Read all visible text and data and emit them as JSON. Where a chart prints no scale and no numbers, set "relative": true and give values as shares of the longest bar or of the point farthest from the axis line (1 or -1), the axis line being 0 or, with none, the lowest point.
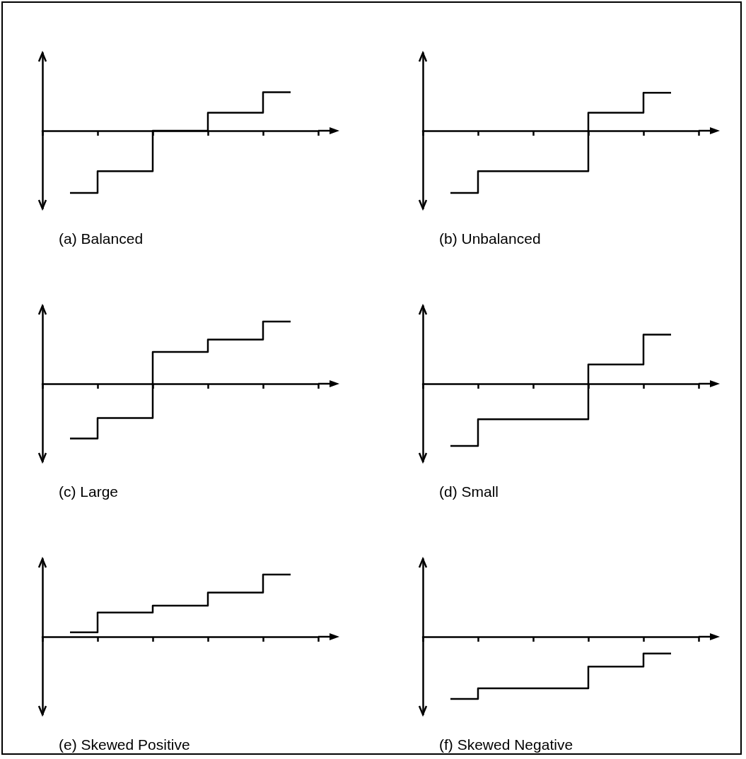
{
  "chart_data": [
    {
      "type": "step",
      "title": "(a) Balanced",
      "relative": true,
      "categories": [
        null,
        null,
        null,
        null,
        null
      ],
      "series": [
        {
          "color": "#000000",
          "values": [
            -1,
            -0.65,
            0,
            0.29,
            0.62
          ]
        }
      ]
    },
    {
      "type": "step",
      "title": "(b) Unbalanced",
      "relative": true,
      "categories": [
        null,
        null,
        null,
        null,
        null
      ],
      "series": [
        {
          "color": "#000000",
          "values": [
            -1,
            -0.65,
            -0.65,
            0.29,
            0.61
          ]
        }
      ]
    },
    {
      "type": "step",
      "title": "(c) Large",
      "relative": true,
      "categories": [
        null,
        null,
        null,
        null,
        null
      ],
      "series": [
        {
          "color": "#000000",
          "values": [
            -0.88,
            -0.55,
            0.51,
            0.71,
            1
          ]
        }
      ]
    },
    {
      "type": "step",
      "title": "(d) Small",
      "relative": true,
      "categories": [
        null,
        null,
        null,
        null,
        null
      ],
      "series": [
        {
          "color": "#000000",
          "values": [
            -1,
            -0.57,
            -0.57,
            0.31,
            0.79
          ]
        }
      ]
    },
    {
      "type": "step",
      "title": "(e) Skewed Positive",
      "relative": true,
      "categories": [
        null,
        null,
        null,
        null,
        null
      ],
      "series": [
        {
          "color": "#000000",
          "values": [
            0.07,
            0.39,
            0.5,
            0.71,
            1
          ]
        }
      ]
    },
    {
      "type": "step",
      "title": "(f) Skewed Negative",
      "relative": true,
      "categories": [
        null,
        null,
        null,
        null,
        null
      ],
      "series": [
        {
          "color": "#000000",
          "values": [
            -1,
            -0.83,
            -0.83,
            -0.48,
            -0.27
          ]
        }
      ]
    }
  ]
}
